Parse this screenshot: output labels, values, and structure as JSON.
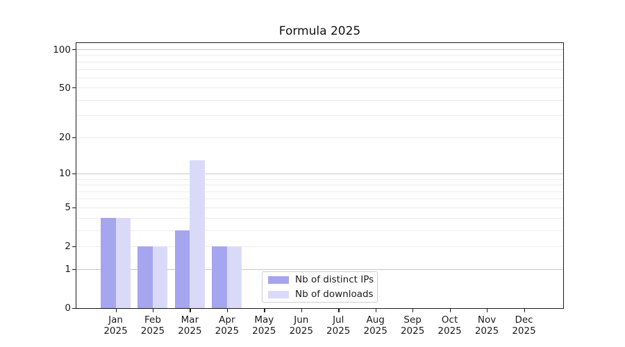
{
  "chart_data": {
    "type": "bar",
    "title": "Formula 2025",
    "x_year": "2025",
    "categories": [
      "Jan",
      "Feb",
      "Mar",
      "Apr",
      "May",
      "Jun",
      "Jul",
      "Aug",
      "Sep",
      "Oct",
      "Nov",
      "Dec"
    ],
    "series": [
      {
        "name": "Nb of distinct IPs",
        "color": "#a5a5f0",
        "values": [
          4,
          2,
          3,
          2,
          0,
          0,
          0,
          0,
          0,
          0,
          0,
          0
        ]
      },
      {
        "name": "Nb of downloads",
        "color": "#dadaf8",
        "values": [
          4,
          2,
          13,
          2,
          0,
          0,
          0,
          0,
          0,
          0,
          0,
          0
        ]
      }
    ],
    "yscale": "log1p",
    "ylim": [
      0,
      111
    ],
    "yticks": [
      0,
      1,
      2,
      5,
      10,
      20,
      50,
      100
    ],
    "major_gridlines": [
      1,
      10,
      100
    ],
    "minor_gridlines": [
      2,
      3,
      4,
      5,
      6,
      7,
      8,
      9,
      20,
      30,
      40,
      50,
      60,
      70,
      80,
      90
    ],
    "grid": true,
    "legend_location": "inside plot, lower center-left"
  },
  "colors": {
    "background": "#ffffff",
    "spine": "#1a1a1a",
    "text": "#1a1a1a",
    "major_grid": "#c6c6c6",
    "minor_grid": "#ececec",
    "legend_border": "#cccccc"
  }
}
